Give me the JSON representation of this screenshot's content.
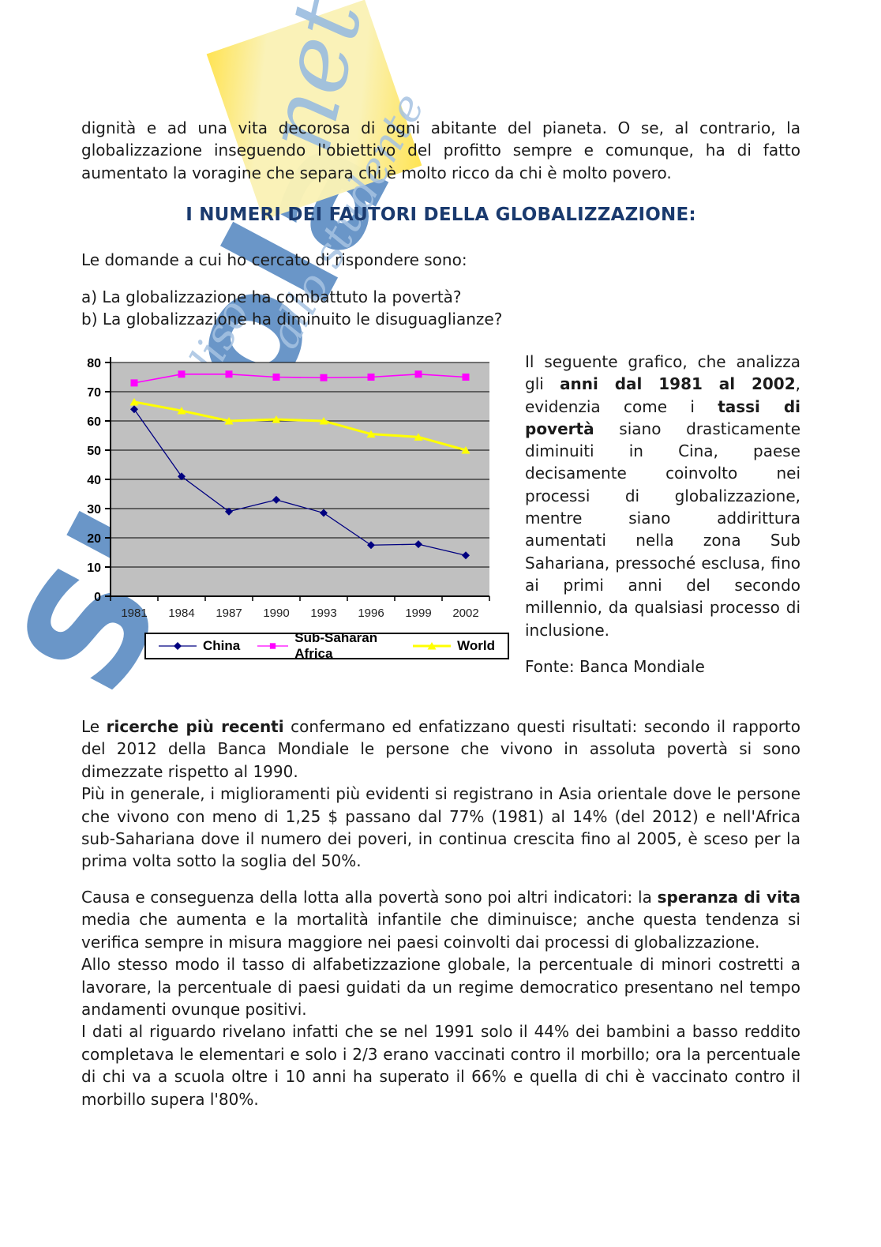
{
  "document": {
    "heading": "I NUMERI DEI FAUTORI DELLA GLOBALIZZAZIONE:",
    "heading_color": "#1a3a6e",
    "paragraphs": {
      "top": [
        {
          "t": "dignità e ad una vita decorosa di ogni abitante del pianeta. O se, al contrario, la globalizzazione inseguendo l'obiettivo del profitto sempre e comunque, ha di fatto aumentato la voragine che separa chi è molto ricco da  chi è molto povero."
        }
      ],
      "questions_intro": "Le domande a cui ho cercato di rispondere sono:",
      "question_a": "a) La globalizzazione ha combattuto la povertà?",
      "question_b": "b) La globalizzazione ha diminuito le disuguaglianze?",
      "chart_side": [
        {
          "t": "Il seguente grafico, che analizza gli "
        },
        {
          "t": "anni dal 1981 al 2002",
          "b": true
        },
        {
          "t": ", evidenzia come i "
        },
        {
          "t": "tassi di povertà",
          "b": true
        },
        {
          "t": " siano drasticamente diminuiti in Cina, paese decisamente coinvolto nei processi di globalizzazione, mentre siano addirittura aumentati nella zona Sub Sahariana, pressoché esclusa, fino ai primi anni del secondo millennio, da qualsiasi processo di inclusione."
        }
      ],
      "source": "Fonte: Banca Mondiale",
      "research": [
        {
          "t": "Le "
        },
        {
          "t": "ricerche più recenti",
          "b": true
        },
        {
          "t": " confermano ed enfatizzano questi risultati: secondo il rapporto del 2012 della Banca Mondiale le persone che vivono in assoluta povertà si sono dimezzate rispetto al 1990.\nPiù in generale, i miglioramenti più evidenti si registrano in Asia orientale dove le persone che vivono con meno di 1,25 $ passano dal 77% (1981) al 14% (del 2012) e nell'Africa sub-Sahariana dove il numero dei poveri, in continua crescita fino al 2005, è sceso per la prima volta sotto la soglia del 50%."
        }
      ],
      "indicators": [
        {
          "t": "Causa e conseguenza della lotta alla povertà sono poi altri indicatori: la "
        },
        {
          "t": "speranza di vita",
          "b": true
        },
        {
          "t": " media che aumenta e la mortalità infantile che diminuisce; anche questa tendenza si verifica sempre in misura maggiore nei paesi coinvolti dai processi di globalizzazione.\nAllo stesso modo il tasso di alfabetizzazione globale, la percentuale di minori costretti a lavorare, la percentuale di paesi guidati da un regime democratico presentano nel tempo andamenti ovunque positivi.\nI dati al riguardo rivelano infatti che se nel 1991 solo il 44% dei bambini a basso reddito completava le elementari e solo i 2/3 erano vaccinati contro il morbillo; ora la percentuale di chi va a scuola oltre i 10 anni ha superato il 66% e quella di chi è vaccinato contro il morbillo supera l'80%."
        }
      ]
    },
    "watermark": {
      "brand_word": "Skuola",
      "brand_tag": "net",
      "slogan_1": "il paradiso",
      "slogan_2": "allo studente",
      "blue": "#4a80bd",
      "light_blue": "#a6c3e2",
      "yellow_pale": "#faf2b6",
      "yellow_bright": "#ffe34d"
    }
  },
  "chart_data": {
    "type": "line",
    "title": "",
    "xlabel": "",
    "ylabel": "",
    "categories": [
      "1981",
      "1984",
      "1987",
      "1990",
      "1993",
      "1996",
      "1999",
      "2002"
    ],
    "series": [
      {
        "name": "China",
        "color": "#000080",
        "marker": "diamond",
        "line_width": 1.3,
        "values": [
          64,
          41,
          29,
          33,
          28.5,
          17.5,
          17.8,
          14
        ]
      },
      {
        "name": "Sub-Saharan Africa",
        "color": "#ff00ff",
        "marker": "square",
        "line_width": 1.6,
        "values": [
          73,
          76,
          76,
          75,
          74.8,
          75,
          76,
          75
        ]
      },
      {
        "name": "World",
        "color": "#ffff00",
        "marker": "triangle",
        "line_width": 3,
        "values": [
          66.5,
          63.5,
          60,
          60.5,
          60,
          55.5,
          54.5,
          50
        ]
      }
    ],
    "ylim": [
      0,
      80
    ],
    "y_ticks": [
      0,
      10,
      20,
      30,
      40,
      50,
      60,
      70,
      80
    ],
    "plot_bg": "#c0c0c0",
    "grid": true,
    "legend_position": "bottom"
  }
}
